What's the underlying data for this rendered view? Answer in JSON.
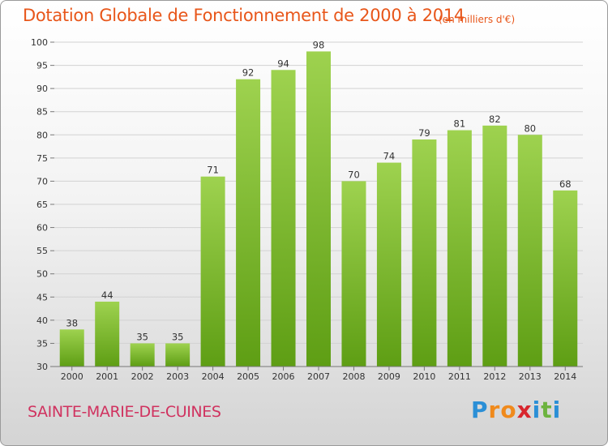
{
  "title": "Dotation Globale de Fonctionnement de 2000 à 2014",
  "subtitle": "(en milliers d'€)",
  "commune": "SAINTE-MARIE-DE-CUINES",
  "logo": {
    "text": "Proxiti",
    "letters": [
      "P",
      "r",
      "o",
      "x",
      "i",
      "t",
      "i"
    ],
    "colors": [
      "#2b8fd6",
      "#f08a1c",
      "#f08a1c",
      "#d8262e",
      "#2b8fd6",
      "#6db33f",
      "#2b8fd6"
    ]
  },
  "colors": {
    "bar_light": "#9ed24f",
    "bar_dark": "#5e9e14",
    "title": "#e8561a",
    "commune": "#d0325f"
  },
  "chart_data": {
    "type": "bar",
    "categories": [
      "2000",
      "2001",
      "2002",
      "2003",
      "2004",
      "2005",
      "2006",
      "2007",
      "2008",
      "2009",
      "2010",
      "2011",
      "2012",
      "2013",
      "2014"
    ],
    "values": [
      38,
      44,
      35,
      35,
      71,
      92,
      94,
      98,
      70,
      74,
      79,
      81,
      82,
      80,
      68
    ],
    "value_labels": [
      "38",
      "44",
      "35",
      "35",
      "71",
      "92",
      "94",
      "98",
      "70",
      "74",
      "79",
      "81",
      "82",
      "80",
      "68"
    ],
    "title": "Dotation Globale de Fonctionnement de 2000 à 2014",
    "subtitle": "(en milliers d'€)",
    "xlabel": "",
    "ylabel": "",
    "ylim": [
      30,
      100
    ],
    "yticks": [
      30,
      35,
      40,
      45,
      50,
      55,
      60,
      65,
      70,
      75,
      80,
      85,
      90,
      95,
      100
    ],
    "ytick_labels": [
      "30",
      "35",
      "40",
      "45",
      "50",
      "55",
      "60",
      "65",
      "70",
      "75",
      "80",
      "85",
      "90",
      "95",
      "100"
    ],
    "grid": true,
    "legend": "none"
  }
}
